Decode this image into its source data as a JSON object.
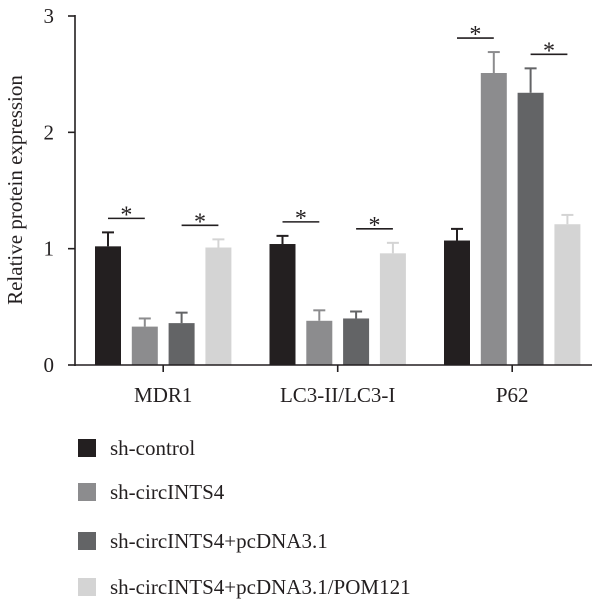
{
  "chart_data": {
    "type": "bar",
    "title": "",
    "xlabel": "",
    "ylabel": "Relative protein expression",
    "ylim": [
      0,
      3
    ],
    "yticks": [
      "0",
      "1",
      "2",
      "3"
    ],
    "categories": [
      "MDR1",
      "LC3-II/LC3-I",
      "P62"
    ],
    "series": [
      {
        "name": "sh-control",
        "color": "#231f20",
        "values": [
          1.02,
          1.04,
          1.07
        ],
        "errors": [
          0.12,
          0.07,
          0.1
        ]
      },
      {
        "name": "sh-circINTS4",
        "color": "#8c8c8e",
        "values": [
          0.33,
          0.38,
          2.51
        ],
        "errors": [
          0.07,
          0.09,
          0.18
        ]
      },
      {
        "name": "sh-circINTS4+pcDNA3.1",
        "color": "#636466",
        "values": [
          0.36,
          0.4,
          2.34
        ],
        "errors": [
          0.09,
          0.06,
          0.21
        ]
      },
      {
        "name": "sh-circINTS4+pcDNA3.1/POM121",
        "color": "#d4d4d4",
        "values": [
          1.01,
          0.96,
          1.21
        ],
        "errors": [
          0.07,
          0.09,
          0.08
        ]
      }
    ],
    "annotations": [
      {
        "category": "MDR1",
        "between": [
          "sh-control",
          "sh-circINTS4"
        ],
        "text": "*"
      },
      {
        "category": "MDR1",
        "between": [
          "sh-circINTS4+pcDNA3.1",
          "sh-circINTS4+pcDNA3.1/POM121"
        ],
        "text": "*"
      },
      {
        "category": "LC3-II/LC3-I",
        "between": [
          "sh-control",
          "sh-circINTS4"
        ],
        "text": "*"
      },
      {
        "category": "LC3-II/LC3-I",
        "between": [
          "sh-circINTS4+pcDNA3.1",
          "sh-circINTS4+pcDNA3.1/POM121"
        ],
        "text": "*"
      },
      {
        "category": "P62",
        "between": [
          "sh-control",
          "sh-circINTS4"
        ],
        "text": "*"
      },
      {
        "category": "P62",
        "between": [
          "sh-circINTS4+pcDNA3.1",
          "sh-circINTS4+pcDNA3.1/POM121"
        ],
        "text": "*"
      }
    ],
    "error_bars": "upper",
    "grid": false,
    "legend": "bottom"
  }
}
